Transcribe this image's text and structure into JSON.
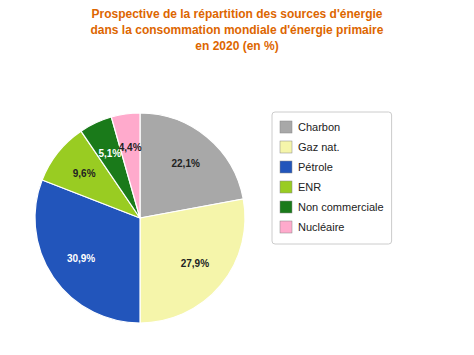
{
  "chart_data": {
    "type": "pie",
    "title": [
      "Prospective de la répartition des sources d'énergie",
      "dans la consommation mondiale d'énergie primaire",
      "en 2020 (en %)"
    ],
    "categories": [
      "Charbon",
      "Gaz nat.",
      "Pétrole",
      "ENR",
      "Non commerciale",
      "Nucléaire"
    ],
    "values": [
      22.1,
      27.9,
      30.9,
      9.6,
      5.1,
      4.4
    ],
    "value_labels": [
      "22,1%",
      "27,9%",
      "30,9%",
      "9,6%",
      "5,1%",
      "4,4%"
    ],
    "colors": [
      "#a8a8a8",
      "#f5f5aa",
      "#2255bb",
      "#99cc22",
      "#1a7a1a",
      "#ffaacc"
    ],
    "data_labels": true,
    "legend": "right"
  }
}
